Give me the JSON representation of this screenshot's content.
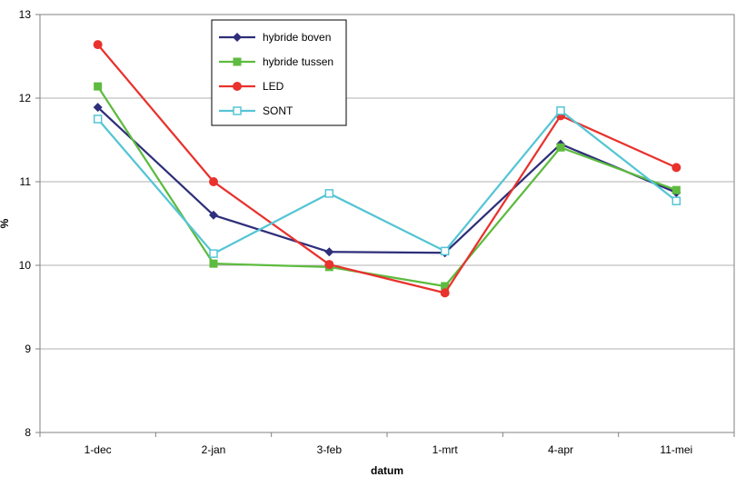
{
  "chart_data": {
    "type": "line",
    "xlabel": "datum",
    "ylabel": "%",
    "ylim": [
      8,
      13
    ],
    "yticks": [
      8,
      9,
      10,
      11,
      12,
      13
    ],
    "grid": "horizontal",
    "legend_position": "top-left",
    "categories": [
      "1-dec",
      "2-jan",
      "3-feb",
      "1-mrt",
      "4-apr",
      "11-mei"
    ],
    "series": [
      {
        "name": "hybride boven",
        "color": "#2e2e7a",
        "marker": "diamond",
        "values": [
          11.89,
          10.6,
          10.16,
          10.15,
          11.45,
          10.87
        ]
      },
      {
        "name": "hybride tussen",
        "color": "#5dbb3f",
        "marker": "square",
        "values": [
          12.14,
          10.02,
          9.98,
          9.75,
          11.41,
          10.9
        ]
      },
      {
        "name": "LED",
        "color": "#e8322d",
        "marker": "circle",
        "values": [
          12.64,
          11.0,
          10.01,
          9.67,
          11.79,
          11.17
        ]
      },
      {
        "name": "SONT",
        "color": "#55c5d5",
        "marker": "hollow-square",
        "values": [
          11.75,
          10.14,
          10.86,
          10.17,
          11.85,
          10.77
        ]
      }
    ]
  }
}
